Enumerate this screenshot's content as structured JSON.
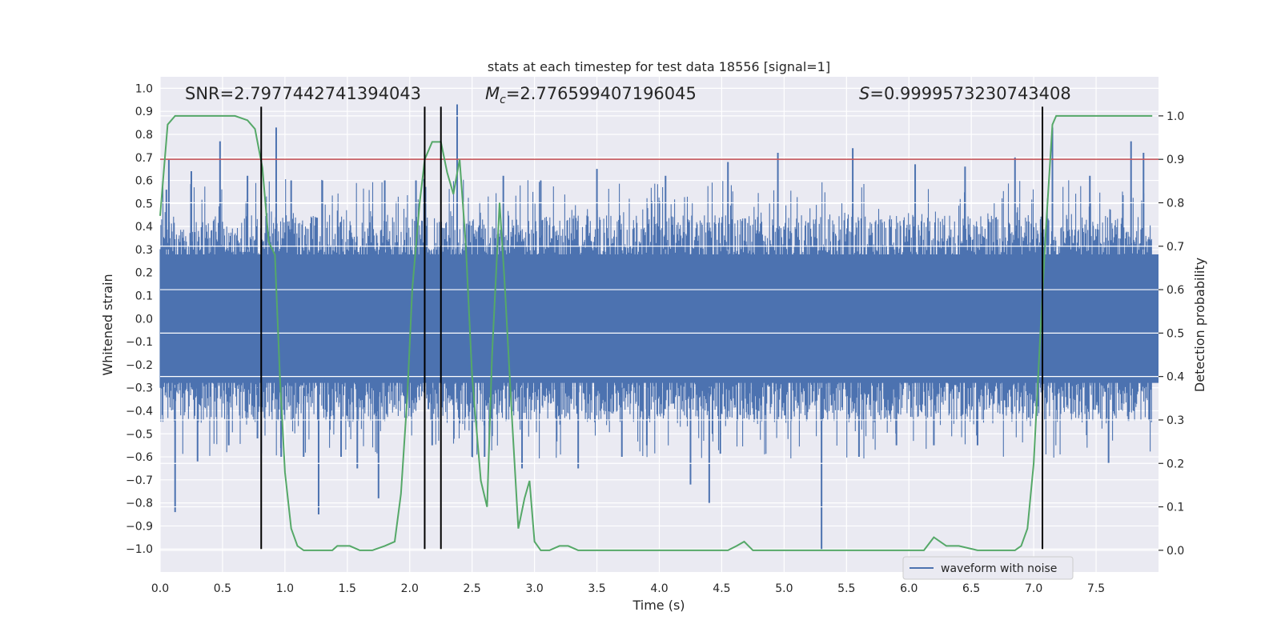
{
  "chart_data": {
    "type": "line",
    "title": "stats at each timestep for test data 18556 [signal=1]",
    "xlabel": "Time (s)",
    "ylabel_left": "Whitened strain",
    "ylabel_right": "Detection probability",
    "xlim": [
      0.0,
      8.0
    ],
    "ylim_left": [
      -1.1,
      1.05
    ],
    "ylim_right": [
      -0.05,
      1.09
    ],
    "x_ticks": [
      "0.0",
      "0.5",
      "1.0",
      "1.5",
      "2.0",
      "2.5",
      "3.0",
      "3.5",
      "4.0",
      "4.5",
      "5.0",
      "5.5",
      "6.0",
      "6.5",
      "7.0",
      "7.5"
    ],
    "x_tick_values": [
      0,
      0.5,
      1,
      1.5,
      2,
      2.5,
      3,
      3.5,
      4,
      4.5,
      5,
      5.5,
      6,
      6.5,
      7,
      7.5
    ],
    "y_left_ticks": [
      "1.0",
      "0.9",
      "0.8",
      "0.7",
      "0.6",
      "0.5",
      "0.4",
      "0.3",
      "0.2",
      "0.1",
      "0.0",
      "−0.1",
      "−0.2",
      "−0.3",
      "−0.4",
      "−0.5",
      "−0.6",
      "−0.7",
      "−0.8",
      "−0.9",
      "−1.0"
    ],
    "y_left_tick_values": [
      1.0,
      0.9,
      0.8,
      0.7,
      0.6,
      0.5,
      0.4,
      0.3,
      0.2,
      0.1,
      0.0,
      -0.1,
      -0.2,
      -0.3,
      -0.4,
      -0.5,
      -0.6,
      -0.7,
      -0.8,
      -0.9,
      -1.0
    ],
    "y_right_ticks": [
      "1.0",
      "0.9",
      "0.8",
      "0.7",
      "0.6",
      "0.5",
      "0.4",
      "0.3",
      "0.2",
      "0.1",
      "0.0"
    ],
    "y_right_tick_values": [
      1.0,
      0.9,
      0.8,
      0.7,
      0.6,
      0.5,
      0.4,
      0.3,
      0.2,
      0.1,
      0.0
    ],
    "annotations": {
      "snr": "SNR=2.7977442741394043",
      "mc_prefix": "M",
      "mc_sub": "c",
      "mc_value": "=2.776599407196045",
      "s_prefix": "S",
      "s_value": "=0.9999573230743408"
    },
    "threshold": {
      "value": 0.9,
      "color": "#c44e52"
    },
    "vertical_lines": [
      0.81,
      2.12,
      2.25,
      7.07
    ],
    "legend": {
      "label": "waveform with noise",
      "placement": "lower-right"
    },
    "series": [
      {
        "name": "waveform with noise",
        "axis": "left",
        "color": "#4c72b0",
        "envelope_upper": 0.45,
        "envelope_lower": -0.45,
        "spikes": [
          [
            0.05,
            0.56
          ],
          [
            0.07,
            0.69
          ],
          [
            0.12,
            -0.84
          ],
          [
            0.25,
            0.64
          ],
          [
            0.3,
            -0.62
          ],
          [
            0.48,
            0.77
          ],
          [
            0.55,
            -0.55
          ],
          [
            0.7,
            0.62
          ],
          [
            0.78,
            -0.52
          ],
          [
            0.93,
            0.83
          ],
          [
            0.97,
            -0.6
          ],
          [
            1.05,
            0.6
          ],
          [
            1.15,
            -0.6
          ],
          [
            1.27,
            -0.85
          ],
          [
            1.3,
            0.6
          ],
          [
            1.45,
            -0.6
          ],
          [
            1.58,
            -0.65
          ],
          [
            1.75,
            -0.78
          ],
          [
            1.8,
            0.6
          ],
          [
            2.05,
            0.6
          ],
          [
            2.18,
            -0.55
          ],
          [
            2.38,
            0.93
          ],
          [
            2.5,
            -0.6
          ],
          [
            2.6,
            -0.6
          ],
          [
            2.75,
            0.62
          ],
          [
            2.9,
            -0.65
          ],
          [
            3.05,
            0.6
          ],
          [
            3.35,
            -0.65
          ],
          [
            3.5,
            0.65
          ],
          [
            3.7,
            -0.6
          ],
          [
            3.9,
            -0.55
          ],
          [
            4.05,
            0.62
          ],
          [
            4.25,
            -0.72
          ],
          [
            4.4,
            -0.8
          ],
          [
            4.55,
            0.68
          ],
          [
            4.95,
            0.72
          ],
          [
            5.3,
            -1.0
          ],
          [
            5.55,
            0.74
          ],
          [
            5.6,
            -0.6
          ],
          [
            5.9,
            -0.55
          ],
          [
            6.05,
            0.67
          ],
          [
            6.2,
            -0.55
          ],
          [
            6.45,
            0.66
          ],
          [
            6.55,
            -0.55
          ],
          [
            6.85,
            0.7
          ],
          [
            7.15,
            0.83
          ],
          [
            7.45,
            0.62
          ],
          [
            7.6,
            -0.63
          ],
          [
            7.78,
            0.77
          ],
          [
            7.88,
            0.72
          ]
        ]
      },
      {
        "name": "detection probability",
        "axis": "right",
        "color": "#55a868",
        "x": [
          0.0,
          0.06,
          0.12,
          0.2,
          0.3,
          0.4,
          0.5,
          0.6,
          0.7,
          0.76,
          0.82,
          0.87,
          0.92,
          0.96,
          1.0,
          1.05,
          1.1,
          1.15,
          1.2,
          1.25,
          1.3,
          1.38,
          1.42,
          1.47,
          1.52,
          1.6,
          1.7,
          1.8,
          1.88,
          1.93,
          1.98,
          2.02,
          2.08,
          2.12,
          2.18,
          2.25,
          2.3,
          2.35,
          2.4,
          2.45,
          2.5,
          2.57,
          2.62,
          2.66,
          2.72,
          2.76,
          2.82,
          2.87,
          2.92,
          2.96,
          3.0,
          3.05,
          3.12,
          3.2,
          3.27,
          3.35,
          3.45,
          3.55,
          3.7,
          4.0,
          4.3,
          4.5,
          4.55,
          4.62,
          4.68,
          4.75,
          4.85,
          4.95,
          5.05,
          5.5,
          6.0,
          6.12,
          6.2,
          6.3,
          6.4,
          6.55,
          6.7,
          6.8,
          6.85,
          6.9,
          6.95,
          7.0,
          7.05,
          7.1,
          7.15,
          7.18,
          7.22,
          7.3,
          7.5,
          7.7,
          7.95
        ],
        "y": [
          0.77,
          0.98,
          1.0,
          1.0,
          1.0,
          1.0,
          1.0,
          1.0,
          0.99,
          0.97,
          0.88,
          0.71,
          0.68,
          0.4,
          0.18,
          0.05,
          0.01,
          0.0,
          0.0,
          0.0,
          0.0,
          0.0,
          0.01,
          0.01,
          0.01,
          0.0,
          0.0,
          0.01,
          0.02,
          0.13,
          0.35,
          0.6,
          0.8,
          0.9,
          0.94,
          0.94,
          0.87,
          0.82,
          0.9,
          0.7,
          0.4,
          0.16,
          0.1,
          0.45,
          0.8,
          0.62,
          0.3,
          0.05,
          0.12,
          0.16,
          0.02,
          0.0,
          0.0,
          0.01,
          0.01,
          0.0,
          0.0,
          0.0,
          0.0,
          0.0,
          0.0,
          0.0,
          0.0,
          0.01,
          0.02,
          0.0,
          0.0,
          0.0,
          0.0,
          0.0,
          0.0,
          0.0,
          0.03,
          0.01,
          0.01,
          0.0,
          0.0,
          0.0,
          0.0,
          0.01,
          0.05,
          0.2,
          0.48,
          0.75,
          0.98,
          1.0,
          1.0,
          1.0,
          1.0,
          1.0,
          1.0
        ]
      }
    ]
  }
}
